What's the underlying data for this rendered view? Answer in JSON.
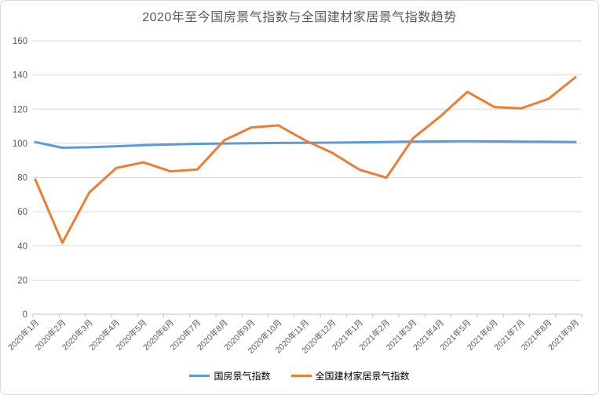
{
  "chart": {
    "title": "2020年至今国房景气指数与全国建材家居景气指数趋势",
    "title_color": "#595959",
    "background": "#ffffff",
    "border_color": "#d9d9d9"
  },
  "chart_data": {
    "type": "line",
    "title": "2020年至今国房景气指数与全国建材家居景气指数趋势",
    "categories": [
      "2020年1月",
      "2020年2月",
      "2020年3月",
      "2020年4月",
      "2020年5月",
      "2020年6月",
      "2020年7月",
      "2020年8月",
      "2020年9月",
      "2020年10月",
      "2020年11月",
      "2020年12月",
      "2021年1月",
      "2021年2月",
      "2021年3月",
      "2021年4月",
      "2021年5月",
      "2021年6月",
      "2021年7月",
      "2021年8月",
      "2021年9月"
    ],
    "series": [
      {
        "name": "国房景气指数",
        "color": "#5B9BD5",
        "values": [
          100.7,
          97.4,
          97.7,
          98.3,
          98.9,
          99.3,
          99.7,
          99.9,
          100.1,
          100.2,
          100.3,
          100.4,
          100.6,
          100.8,
          101.0,
          101.1,
          101.2,
          101.1,
          101.0,
          100.9,
          100.7
        ]
      },
      {
        "name": "全国建材家居景气指数",
        "color": "#ED7D31",
        "values": [
          78.8,
          41.8,
          71.3,
          85.6,
          88.9,
          83.6,
          84.7,
          101.8,
          109.3,
          110.5,
          101.7,
          94.4,
          84.6,
          79.9,
          103.2,
          115.8,
          130.1,
          121.2,
          120.5,
          126.0,
          138.7
        ]
      }
    ],
    "xlabel": "",
    "ylabel": "",
    "ylim": [
      0,
      160
    ],
    "yticks": [
      0,
      20,
      40,
      60,
      80,
      100,
      120,
      140,
      160
    ],
    "grid": true,
    "gridline_color": "#d9d9d9",
    "axis_color": "#bfbfbf",
    "tick_label_color": "#595959",
    "legend_position": "bottom"
  }
}
